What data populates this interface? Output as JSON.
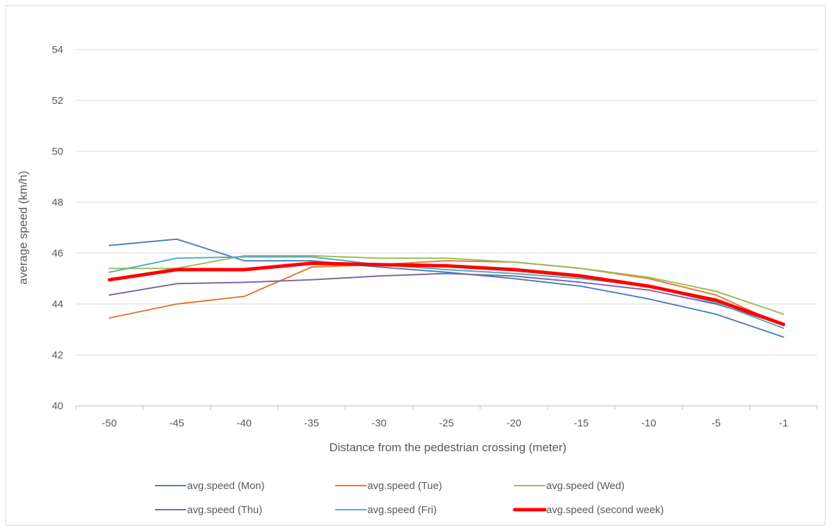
{
  "chart_data": {
    "type": "line",
    "title": "",
    "xlabel": "Distance from the pedestrian crossing (meter)",
    "ylabel": "average speed (km/h)",
    "categories": [
      "-50",
      "-45",
      "-40",
      "-35",
      "-30",
      "-25",
      "-20",
      "-15",
      "-10",
      "-5",
      "-1"
    ],
    "ylim": [
      40,
      54
    ],
    "yticks": [
      40,
      42,
      44,
      46,
      48,
      50,
      52,
      54
    ],
    "grid": "horizontal",
    "legend": "bottom",
    "series": [
      {
        "name": "avg.speed (Mon)",
        "color": "#4e7fbd",
        "width": 2,
        "values": [
          46.3,
          46.55,
          45.7,
          45.7,
          45.45,
          45.25,
          45.0,
          44.7,
          44.2,
          43.6,
          42.7
        ]
      },
      {
        "name": "avg.speed (Tue)",
        "color": "#e8772e",
        "width": 2,
        "values": [
          43.45,
          44.0,
          44.3,
          45.45,
          45.55,
          45.7,
          45.65,
          45.4,
          45.0,
          44.35,
          43.15
        ]
      },
      {
        "name": "avg.speed (Wed)",
        "color": "#9bbb59",
        "width": 2,
        "values": [
          45.4,
          45.4,
          45.9,
          45.9,
          45.8,
          45.8,
          45.65,
          45.4,
          45.05,
          44.5,
          43.6
        ]
      },
      {
        "name": "avg.speed (Thu)",
        "color": "#8064a2",
        "width": 2,
        "values": [
          44.35,
          44.8,
          44.85,
          44.95,
          45.1,
          45.2,
          45.1,
          44.85,
          44.55,
          44.0,
          43.2
        ]
      },
      {
        "name": "avg.speed (Fri)",
        "color": "#4bacc6",
        "width": 2,
        "values": [
          45.25,
          45.8,
          45.85,
          45.85,
          45.55,
          45.35,
          45.2,
          45.0,
          44.7,
          44.05,
          43.05
        ]
      },
      {
        "name": "avg.speed (second week)",
        "color": "#ff0000",
        "width": 5,
        "values": [
          44.95,
          45.35,
          45.35,
          45.6,
          45.55,
          45.5,
          45.35,
          45.1,
          44.7,
          44.15,
          43.2
        ]
      }
    ]
  }
}
